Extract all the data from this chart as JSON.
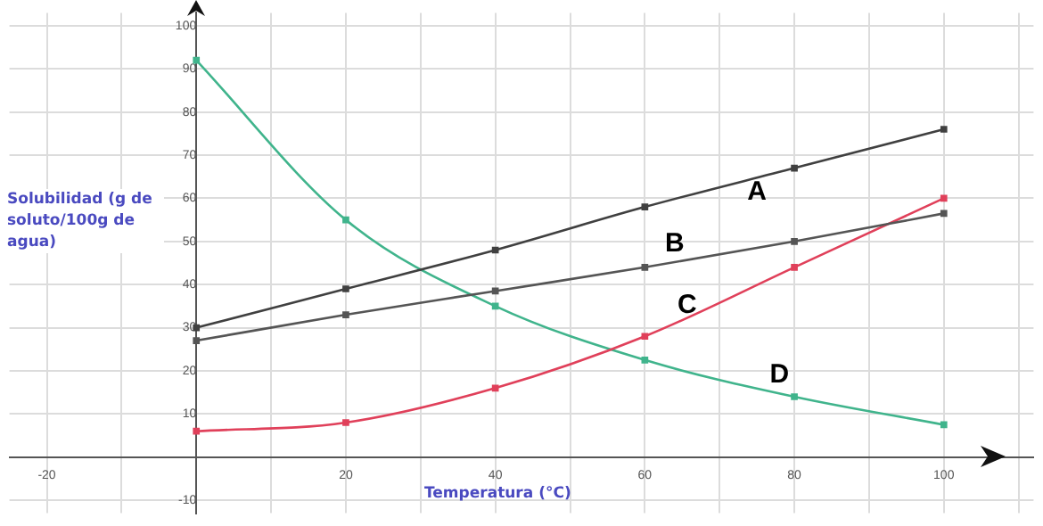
{
  "chart_data": {
    "type": "line",
    "xlabel": "Temperatura (°C)",
    "ylabel": "Solubilidad (g de soluto/100g de agua)",
    "x": [
      0,
      20,
      40,
      60,
      80,
      100
    ],
    "series": [
      {
        "name": "A",
        "color": "#404040",
        "values": [
          30,
          39,
          48,
          58,
          67,
          76
        ]
      },
      {
        "name": "B",
        "color": "#555555",
        "values": [
          27,
          33,
          38.5,
          44,
          50,
          56.5
        ]
      },
      {
        "name": "C",
        "color": "#e0405a",
        "values": [
          6,
          8,
          16,
          28,
          44,
          60
        ]
      },
      {
        "name": "D",
        "color": "#40b48c",
        "values": [
          92,
          55,
          35,
          22.5,
          14,
          7.5
        ]
      }
    ],
    "xlim": [
      -25,
      112
    ],
    "ylim": [
      -13,
      103
    ],
    "xticks": [
      -20,
      {
        "value": -10,
        "label": null
      },
      {
        "value": 0,
        "label": null
      },
      {
        "value": 10,
        "label": null
      },
      20,
      {
        "value": 30,
        "label": null
      },
      40,
      {
        "value": 50,
        "label": null
      },
      60,
      {
        "value": 70,
        "label": null
      },
      80,
      {
        "value": 90,
        "label": null
      },
      100,
      {
        "value": 110,
        "label": null
      }
    ],
    "yticks": [
      -10,
      {
        "value": 0,
        "label": null
      },
      10,
      20,
      30,
      40,
      50,
      60,
      70,
      80,
      90,
      100
    ],
    "grid": true,
    "legend": false,
    "marker": "square",
    "line_style": "solid"
  }
}
